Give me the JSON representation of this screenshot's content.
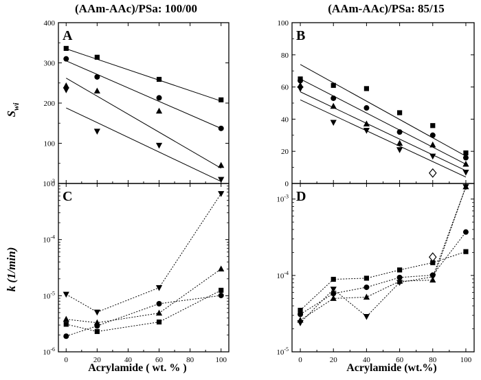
{
  "titles": {
    "left": "(AAm-AAc)/PSa:  100/00",
    "right": "(AAm-AAc)/PSa: 85/15"
  },
  "axis_labels": {
    "y_top": "S",
    "y_top_sub": "wi",
    "y_bottom": "k (1/min)",
    "x_left": "Acrylamide ( wt. % )",
    "x_right": "Acrylamide (wt.%)"
  },
  "chart_data": [
    {
      "panel": "A",
      "type": "scatter",
      "title": "(AAm-AAc)/PSa:  100/00",
      "ylabel": "Swi",
      "ylim": [
        0,
        400
      ],
      "yticks": [
        0,
        100,
        200,
        300,
        400
      ],
      "xlim": [
        -5,
        105
      ],
      "xticks": [
        0,
        20,
        40,
        60,
        80,
        100
      ],
      "series": [
        {
          "name": "square",
          "marker": "square",
          "x": [
            0,
            20,
            60,
            100
          ],
          "values": [
            336,
            314,
            259,
            208
          ],
          "fit": [
            [
              0,
              335
            ],
            [
              100,
              205
            ]
          ]
        },
        {
          "name": "circle",
          "marker": "circle",
          "x": [
            0,
            20,
            60,
            100
          ],
          "values": [
            310,
            265,
            213,
            137
          ],
          "fit": [
            [
              0,
              305
            ],
            [
              100,
              137
            ]
          ]
        },
        {
          "name": "triangle-up",
          "marker": "triangle-up",
          "x": [
            0,
            20,
            60,
            100
          ],
          "values": [
            243,
            230,
            180,
            45
          ],
          "fit": [
            [
              0,
              262
            ],
            [
              100,
              38
            ]
          ]
        },
        {
          "name": "triangle-down",
          "marker": "triangle-down",
          "x": [
            0,
            20,
            60,
            100
          ],
          "values": [
            233,
            130,
            95,
            10
          ],
          "fit": [
            [
              0,
              188
            ],
            [
              100,
              5
            ]
          ]
        }
      ]
    },
    {
      "panel": "B",
      "type": "scatter",
      "title": "(AAm-AAc)/PSa: 85/15",
      "ylim": [
        0,
        100
      ],
      "yticks": [
        0,
        20,
        40,
        60,
        80,
        100
      ],
      "xlim": [
        -5,
        105
      ],
      "xticks": [
        0,
        20,
        40,
        60,
        80,
        100
      ],
      "series": [
        {
          "name": "square",
          "marker": "square",
          "x": [
            0,
            20,
            40,
            60,
            80,
            100
          ],
          "values": [
            65,
            61,
            59,
            44,
            36,
            19
          ],
          "fit": [
            [
              0,
              74
            ],
            [
              100,
              17
            ]
          ]
        },
        {
          "name": "circle",
          "marker": "circle",
          "x": [
            0,
            20,
            40,
            60,
            80,
            100
          ],
          "values": [
            64,
            53,
            47,
            32,
            30,
            16
          ],
          "fit": [
            [
              0,
              65
            ],
            [
              100,
              12
            ]
          ]
        },
        {
          "name": "triangle-up",
          "marker": "triangle-up",
          "x": [
            0,
            20,
            40,
            60,
            80,
            100
          ],
          "values": [
            61,
            48,
            37,
            25,
            24,
            12
          ],
          "fit": [
            [
              0,
              57
            ],
            [
              100,
              8
            ]
          ]
        },
        {
          "name": "triangle-down",
          "marker": "triangle-down",
          "x": [
            0,
            20,
            40,
            60,
            80,
            100
          ],
          "values": [
            59,
            38,
            33,
            21,
            17,
            7
          ],
          "fit": [
            [
              0,
              52
            ],
            [
              100,
              4
            ]
          ]
        },
        {
          "name": "open-diamond",
          "marker": "diamond-open",
          "x": [
            80
          ],
          "values": [
            6.5
          ]
        }
      ]
    },
    {
      "panel": "C",
      "type": "scatter",
      "ylabel": "k (1/min)",
      "xlabel": "Acrylamide ( wt. % )",
      "yscale": "log",
      "ylim": [
        1e-06,
        0.001
      ],
      "yticks": [
        1e-06,
        1e-05,
        0.0001,
        0.001
      ],
      "ytick_labels": [
        "10-6",
        "10-5",
        "10-4",
        "10-3"
      ],
      "xlim": [
        -5,
        105
      ],
      "xticks": [
        0,
        20,
        40,
        60,
        80,
        100
      ],
      "series": [
        {
          "name": "square",
          "marker": "square",
          "x": [
            0,
            20,
            60,
            100
          ],
          "values": [
            3.1e-06,
            2.3e-06,
            3.4e-06,
            1.25e-05
          ]
        },
        {
          "name": "circle",
          "marker": "circle",
          "x": [
            0,
            20,
            60,
            100
          ],
          "values": [
            1.9e-06,
            2.9e-06,
            7.2e-06,
            1.01e-05
          ]
        },
        {
          "name": "triangle-up",
          "marker": "triangle-up",
          "x": [
            0,
            20,
            60,
            100
          ],
          "values": [
            3.8e-06,
            3.3e-06,
            4.9e-06,
            3e-05
          ]
        },
        {
          "name": "triangle-down",
          "marker": "triangle-down",
          "x": [
            0,
            20,
            60,
            100
          ],
          "values": [
            1.06e-05,
            5.1e-06,
            1.39e-05,
            0.00066
          ]
        }
      ]
    },
    {
      "panel": "D",
      "type": "scatter",
      "xlabel": "Acrylamide (wt.%)",
      "yscale": "log",
      "ylim": [
        1e-05,
        0.0016
      ],
      "yticks": [
        1e-05,
        0.0001,
        0.001
      ],
      "ytick_labels": [
        "10-5",
        "10-4",
        "10-3"
      ],
      "xlim": [
        -5,
        105
      ],
      "xticks": [
        0,
        20,
        40,
        60,
        80,
        100
      ],
      "series": [
        {
          "name": "square",
          "marker": "square",
          "x": [
            0,
            20,
            40,
            60,
            80,
            100
          ],
          "values": [
            3.5e-05,
            8.9e-05,
            9.2e-05,
            0.000118,
            0.000147,
            0.000205
          ]
        },
        {
          "name": "circle",
          "marker": "circle",
          "x": [
            0,
            20,
            40,
            60,
            80,
            100
          ],
          "values": [
            3.1e-05,
            5.8e-05,
            7e-05,
            9.4e-05,
            0.000101,
            0.00037
          ]
        },
        {
          "name": "triangle-up",
          "marker": "triangle-up",
          "x": [
            0,
            20,
            40,
            60,
            80,
            100
          ],
          "values": [
            2.6e-05,
            5e-05,
            5.2e-05,
            8.4e-05,
            8.7e-05,
            0.00145
          ]
        },
        {
          "name": "triangle-down",
          "marker": "triangle-down",
          "x": [
            0,
            20,
            40,
            60,
            80,
            100
          ],
          "values": [
            2.4e-05,
            6.6e-05,
            2.9e-05,
            8.1e-05,
            9.6e-05,
            0.00145
          ]
        },
        {
          "name": "open-diamond",
          "marker": "diamond-open",
          "x": [
            80
          ],
          "values": [
            0.000174
          ]
        }
      ]
    }
  ]
}
